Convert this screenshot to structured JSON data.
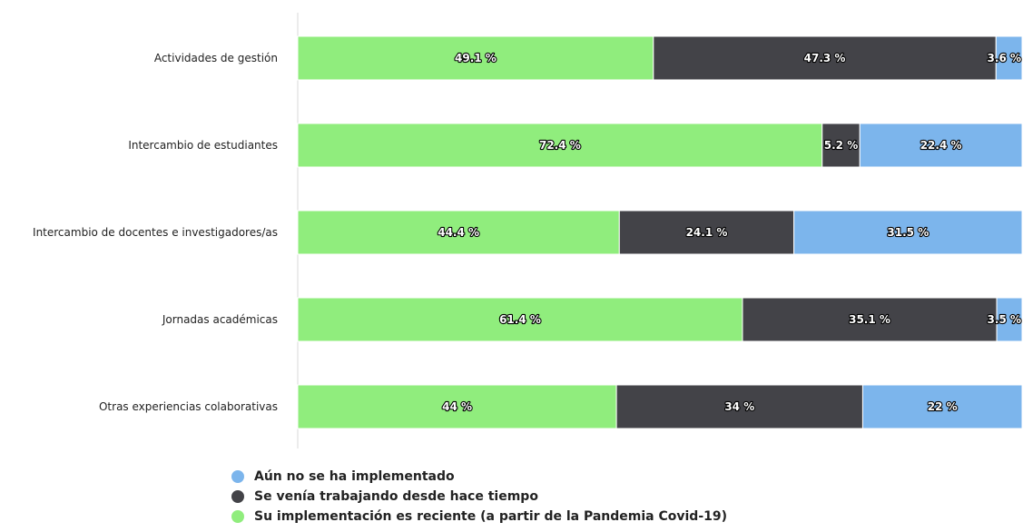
{
  "chart_data": {
    "type": "bar",
    "orientation": "horizontal",
    "stacked": true,
    "normalized_percent": true,
    "categories": [
      "Actividades de gestión",
      "Intercambio de estudiantes",
      "Intercambio de docentes e investigadores/as",
      "Jornadas académicas",
      "Otras experiencias colaborativas"
    ],
    "series": [
      {
        "name": "Su implementación es reciente (a partir de la Pandemia Covid-19)",
        "color": "#90ed7d",
        "values": [
          49.1,
          72.4,
          44.4,
          61.4,
          44
        ],
        "labels": [
          "49.1 %",
          "72.4 %",
          "44.4 %",
          "61.4 %",
          "44 %"
        ]
      },
      {
        "name": "Se venía trabajando desde hace tiempo",
        "color": "#434348",
        "values": [
          47.3,
          5.2,
          24.1,
          35.1,
          34
        ],
        "labels": [
          "47.3 %",
          "5.2 %",
          "24.1 %",
          "35.1 %",
          "34 %"
        ]
      },
      {
        "name": "Aún no se ha implementado",
        "color": "#7cb5ec",
        "values": [
          3.6,
          22.4,
          31.5,
          3.5,
          22
        ],
        "labels": [
          "3.6 %",
          "22.4 %",
          "31.5 %",
          "3.5 %",
          "22 %"
        ]
      }
    ],
    "xlim": [
      0,
      100
    ],
    "grid": false,
    "legend_position": "bottom",
    "legend_order": [
      2,
      1,
      0
    ]
  }
}
